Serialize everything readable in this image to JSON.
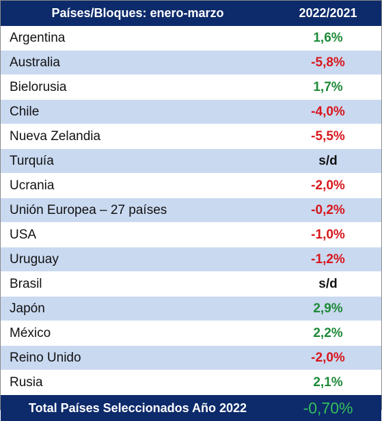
{
  "header": {
    "country_col": "Países/Bloques: enero-marzo",
    "value_col": "2022/2021"
  },
  "colors": {
    "header_bg": "#0d2a6b",
    "band": "#c9d9f0",
    "positive": "#1e8a38",
    "negative": "#d8161c",
    "total_value": "#34c05a"
  },
  "rows": [
    {
      "country": "Argentina",
      "value": "1,6%",
      "trend": "pos"
    },
    {
      "country": "Australia",
      "value": "-5,8%",
      "trend": "neg"
    },
    {
      "country": "Bielorusia",
      "value": "1,7%",
      "trend": "pos"
    },
    {
      "country": "Chile",
      "value": "-4,0%",
      "trend": "neg"
    },
    {
      "country": "Nueva Zelandia",
      "value": "-5,5%",
      "trend": "neg"
    },
    {
      "country": "Turquía",
      "value": "s/d",
      "trend": "none"
    },
    {
      "country": "Ucrania",
      "value": "-2,0%",
      "trend": "neg"
    },
    {
      "country": "Unión Europea – 27 países",
      "value": "-0,2%",
      "trend": "neg"
    },
    {
      "country": "USA",
      "value": "-1,0%",
      "trend": "neg"
    },
    {
      "country": "Uruguay",
      "value": "-1,2%",
      "trend": "neg"
    },
    {
      "country": "Brasil",
      "value": "s/d",
      "trend": "none"
    },
    {
      "country": "Japón",
      "value": "2,9%",
      "trend": "pos"
    },
    {
      "country": "México",
      "value": "2,2%",
      "trend": "pos"
    },
    {
      "country": "Reino Unido",
      "value": "-2,0%",
      "trend": "neg"
    },
    {
      "country": "Rusia",
      "value": "2,1%",
      "trend": "pos"
    }
  ],
  "total": {
    "label": "Total Países Seleccionados Año 2022",
    "value": "-0,70%"
  }
}
